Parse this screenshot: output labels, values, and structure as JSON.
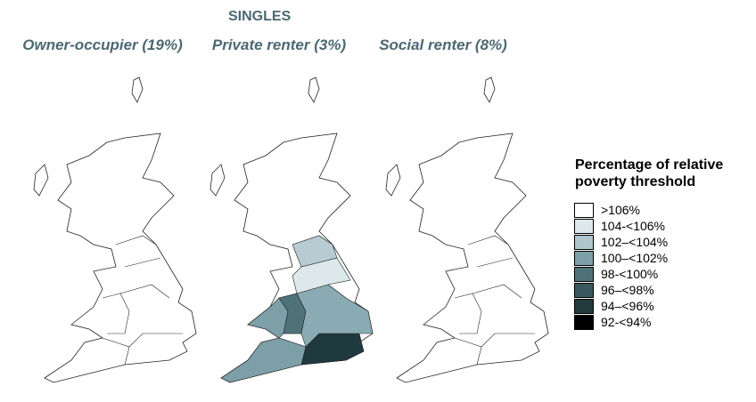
{
  "title": "SINGLES",
  "panels": [
    "Owner-occupier (19%)",
    "Private renter (3%)",
    "Social renter (8%)"
  ],
  "legend": {
    "title": "Percentage of relative poverty threshold",
    "items": [
      {
        "label": ">106%",
        "color": "#ffffff"
      },
      {
        "label": "104-<106%",
        "color": "#dde8eb"
      },
      {
        "label": "102–<104%",
        "color": "#aec6cc"
      },
      {
        "label": "100–<102%",
        "color": "#7d9fa8"
      },
      {
        "label": "98-<100%",
        "color": "#4f7279"
      },
      {
        "label": "96–<98%",
        "color": "#3a585e"
      },
      {
        "label": "94–<96%",
        "color": "#22393d"
      },
      {
        "label": "92-<94%",
        "color": "#000000"
      }
    ]
  }
}
